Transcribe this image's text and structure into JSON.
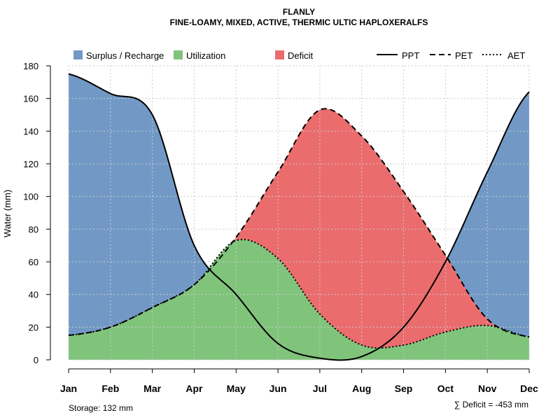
{
  "chart_data": {
    "type": "area",
    "title": "FLANLY",
    "subtitle": "FINE-LOAMY, MIXED, ACTIVE, THERMIC ULTIC HAPLOXERALFS",
    "xlabel": "",
    "ylabel": "Water (mm)",
    "ylim": [
      0,
      180
    ],
    "yticks": [
      0,
      20,
      40,
      60,
      80,
      100,
      120,
      140,
      160,
      180
    ],
    "grid": true,
    "categories": [
      "Jan",
      "Feb",
      "Mar",
      "Apr",
      "May",
      "Jun",
      "Jul",
      "Aug",
      "Sep",
      "Oct",
      "Nov",
      "Dec"
    ],
    "series": [
      {
        "name": "PPT",
        "linestyle": "solid",
        "values": [
          175,
          163,
          150,
          70,
          40,
          10,
          1,
          2,
          20,
          60,
          115,
          164
        ]
      },
      {
        "name": "PET",
        "linestyle": "dashed",
        "values": [
          15,
          20,
          32,
          46,
          75,
          115,
          153,
          137,
          103,
          64,
          25,
          14
        ]
      },
      {
        "name": "AET",
        "linestyle": "dotted",
        "values": [
          15,
          20,
          32,
          46,
          73,
          62,
          28,
          9,
          9,
          17,
          21,
          14
        ]
      }
    ],
    "areas": [
      {
        "name": "Surplus / Recharge",
        "color": "#7299C6"
      },
      {
        "name": "Utilization",
        "color": "#80C47C"
      },
      {
        "name": "Deficit",
        "color": "#EB6C6D"
      }
    ],
    "legend_position": "top",
    "footer": {
      "storage": "Storage: 132 mm",
      "deficit": "∑ Deficit = -453 mm"
    }
  }
}
